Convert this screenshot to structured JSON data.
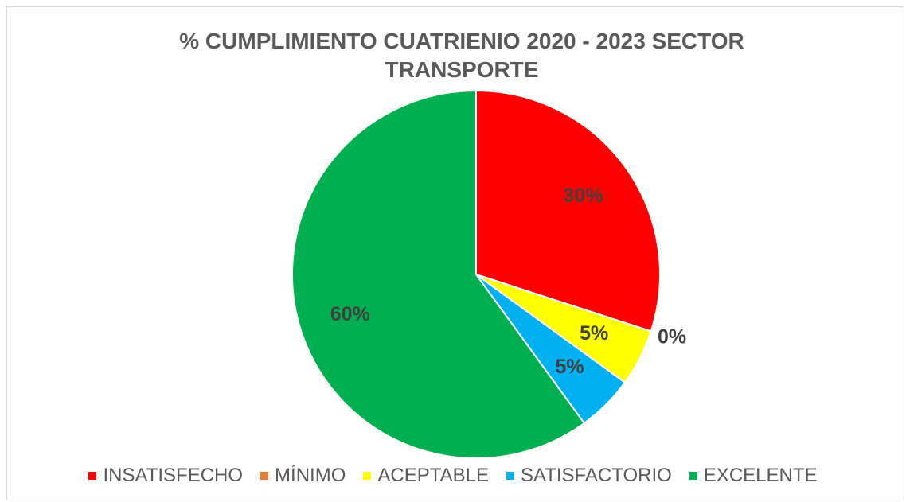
{
  "chart_data": {
    "type": "pie",
    "title": "% CUMPLIMIENTO CUATRIENIO 2020 - 2023 SECTOR TRANSPORTE",
    "categories": [
      "INSATISFECHO",
      "MÍNIMO",
      "ACEPTABLE",
      "SATISFACTORIO",
      "EXCELENTE"
    ],
    "values": [
      30,
      0,
      5,
      5,
      60
    ],
    "value_labels": [
      "30%",
      "0%",
      "5%",
      "5%",
      "60%"
    ],
    "colors": [
      "#ff0000",
      "#ed7d31",
      "#ffff00",
      "#00b0f0",
      "#00b050"
    ],
    "legend": "bottom"
  }
}
